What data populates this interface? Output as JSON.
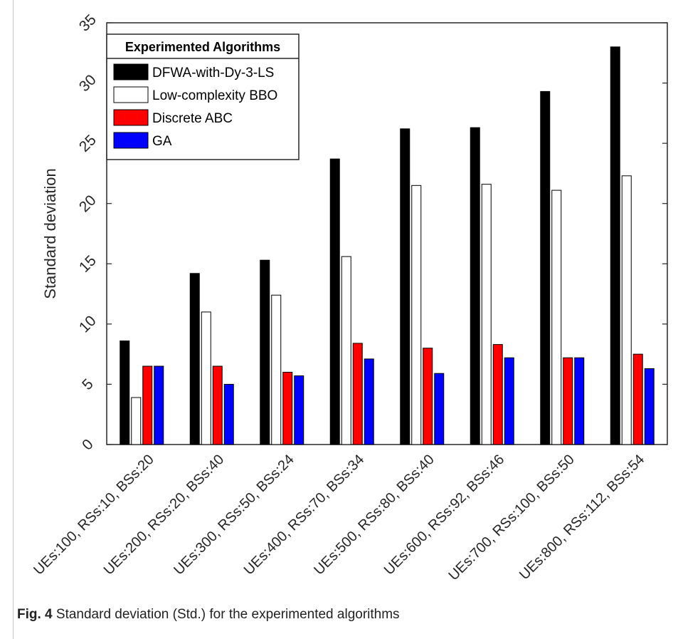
{
  "chart_data": {
    "type": "bar",
    "categories": [
      "UEs:100, RSs:10, BSs:20",
      "UEs:200, RSs:20, BSs:40",
      "UEs:300, RSs:50, BSs:24",
      "UEs:400, RSs:70, BSs:34",
      "UEs:500, RSs:80, BSs:40",
      "UEs:600, RSs:92, BSs:46",
      "UEs:700, RSs:100, BSs:50",
      "UEs:800, RSs:112, BSs:54"
    ],
    "series": [
      {
        "name": "DFWA-with-Dy-3-LS",
        "color": "#000000",
        "values": [
          8.6,
          14.2,
          15.3,
          23.7,
          26.2,
          26.3,
          29.3,
          33.0
        ]
      },
      {
        "name": "Low-complexity BBO",
        "color": "#ffffff",
        "values": [
          3.9,
          11.0,
          12.4,
          15.6,
          21.5,
          21.6,
          21.1,
          22.3
        ]
      },
      {
        "name": "Discrete ABC",
        "color": "#ff0000",
        "values": [
          6.5,
          6.5,
          6.0,
          8.4,
          8.0,
          8.3,
          7.2,
          7.5
        ]
      },
      {
        "name": "GA",
        "color": "#0000ff",
        "values": [
          6.5,
          5.0,
          5.7,
          7.1,
          5.9,
          7.2,
          7.2,
          6.3
        ]
      }
    ],
    "xlabel": "",
    "ylabel": "Standard deviation",
    "ylim": [
      0,
      35
    ],
    "yticks": [
      0,
      5,
      10,
      15,
      20,
      25,
      30,
      35
    ],
    "legend": {
      "title": "Experimented Algorithms",
      "placement": "top-left"
    },
    "grid": false
  },
  "caption": {
    "label": "Fig. 4",
    "text": "Standard deviation (Std.) for the experimented algorithms"
  }
}
